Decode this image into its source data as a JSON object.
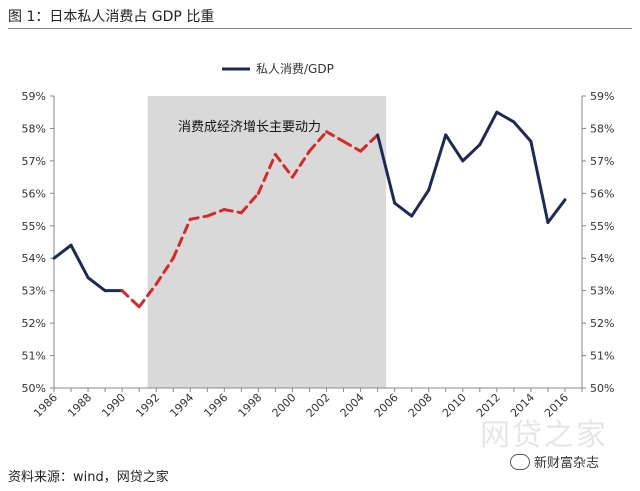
{
  "header": {
    "title": "图 1：日本私人消费占 GDP 比重"
  },
  "footer": {
    "source": "资料来源：wind，网贷之家",
    "watermark": "网贷之家",
    "wechat_label": "新财富杂志"
  },
  "colors": {
    "series": "#1c2a5a",
    "highlight": "#d42a2a",
    "shade": "#d9d9d9"
  },
  "chart_data": {
    "type": "line",
    "title": "",
    "xlabel": "",
    "ylabel": "",
    "ylim": [
      50,
      59
    ],
    "xlim": [
      1986,
      2017
    ],
    "y_tick_labels": [
      "50%",
      "51%",
      "52%",
      "53%",
      "54%",
      "55%",
      "56%",
      "57%",
      "58%",
      "59%"
    ],
    "x_tick_labels": [
      "1986",
      "1988",
      "1990",
      "1992",
      "1994",
      "1996",
      "1998",
      "2000",
      "2002",
      "2004",
      "2006",
      "2008",
      "2010",
      "2012",
      "2014",
      "2016"
    ],
    "series": [
      {
        "name": "私人消费/GDP",
        "x": [
          1986,
          1987,
          1988,
          1989,
          1990,
          1991,
          1992,
          1993,
          1994,
          1995,
          1996,
          1997,
          1998,
          1999,
          2000,
          2001,
          2002,
          2003,
          2004,
          2005,
          2006,
          2007,
          2008,
          2009,
          2010,
          2011,
          2012,
          2013,
          2014,
          2015,
          2016
        ],
        "values": [
          54.0,
          54.4,
          53.4,
          53.0,
          53.0,
          52.5,
          53.2,
          54.0,
          55.2,
          55.3,
          55.5,
          55.4,
          56.0,
          57.2,
          56.5,
          57.3,
          57.9,
          57.6,
          57.3,
          57.8,
          55.7,
          55.3,
          56.1,
          57.8,
          57.0,
          57.5,
          58.5,
          58.2,
          57.6,
          55.1,
          55.8
        ]
      }
    ],
    "highlight_x_range": [
      1990,
      2005
    ],
    "shaded_region": [
      1991.5,
      2005.5
    ],
    "annotation": "消费成经济增长主要动力",
    "legend": "top-center",
    "grid": false
  }
}
